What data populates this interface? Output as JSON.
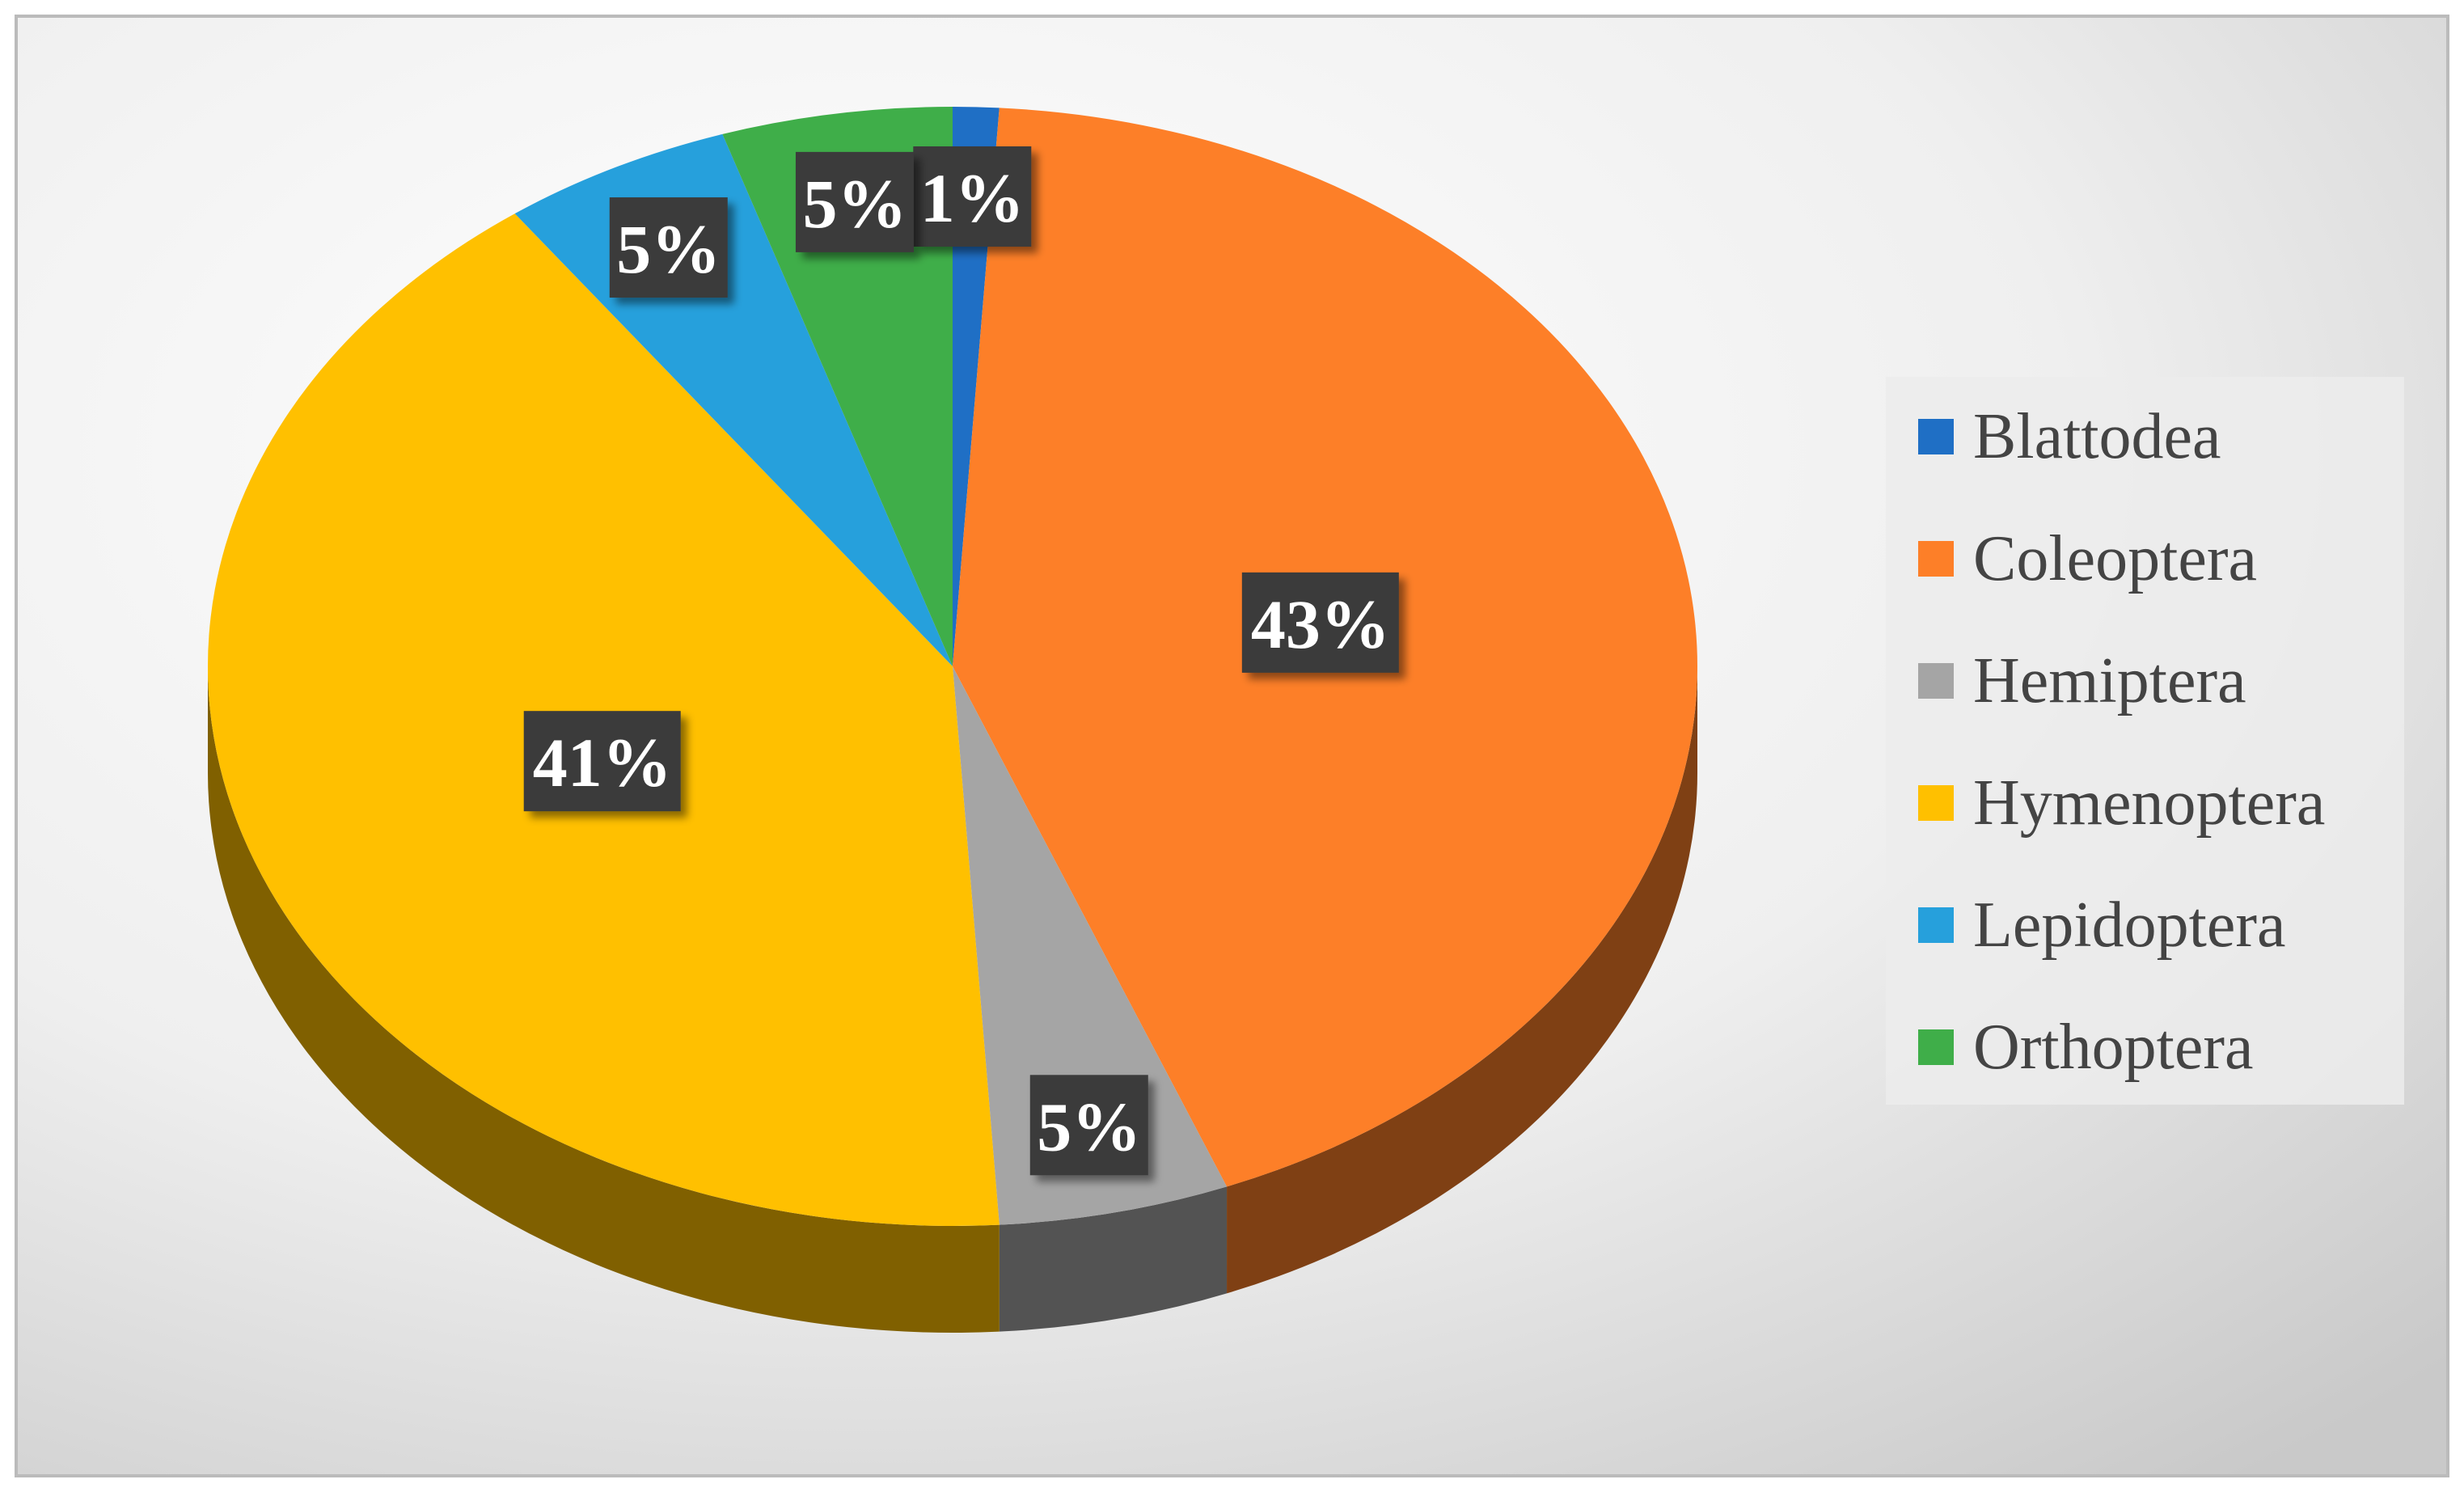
{
  "chart_data": {
    "type": "pie",
    "categories": [
      "Blattodea",
      "Coleoptera",
      "Hemiptera",
      "Hymenoptera",
      "Lepidoptera",
      "Orthoptera"
    ],
    "values": [
      1,
      43,
      5,
      41,
      5,
      5
    ],
    "value_labels": [
      "1%",
      "43%",
      "5%",
      "41%",
      "5%",
      "5%"
    ],
    "colors": [
      "#1f6fc5",
      "#fd7f28",
      "#a5a5a5",
      "#ffc000",
      "#26a0dc",
      "#3fae49"
    ],
    "legend": "right"
  }
}
